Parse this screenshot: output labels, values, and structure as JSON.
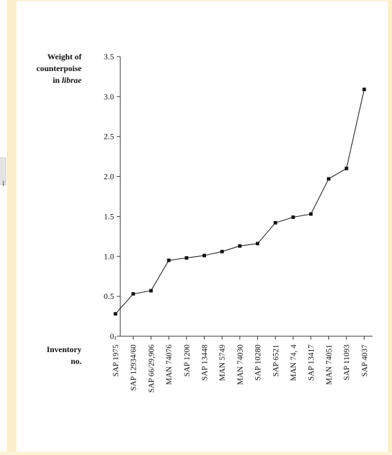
{
  "chart_data": {
    "type": "line",
    "ylabel_lines": [
      "Weight of",
      "counterpoise"
    ],
    "ylabel_prefix": "in ",
    "ylabel_italic": "librae",
    "xlabel_lines": [
      "Inventory",
      "no."
    ],
    "ylim": [
      0,
      3.5
    ],
    "yticks": [
      0,
      0.5,
      1.0,
      1.5,
      2.0,
      2.5,
      3.0,
      3.5
    ],
    "ytick_labels": [
      "0",
      "0.5",
      "1.0",
      "1.5",
      "2.0",
      "2.5",
      "3.0",
      "3.5"
    ],
    "categories": [
      "SAP 1975",
      "SAP 12934/60",
      "SAP 66/29,906",
      "MAN 74076",
      "SAP 1200",
      "SAP 13448",
      "MAN 5749",
      "MAN 74030",
      "SAP 10280",
      "SAP 6521",
      "MAN 74, 4",
      "SAP 13417",
      "MAN 74051",
      "SAP 11093",
      "SAP 4037"
    ],
    "values": [
      0.28,
      0.53,
      0.57,
      0.95,
      0.98,
      1.01,
      1.06,
      1.13,
      1.16,
      1.42,
      1.49,
      1.53,
      1.97,
      2.1,
      3.09
    ],
    "marker": "square",
    "grid": false,
    "legend": null,
    "colors": {
      "line": "#222222",
      "marker": "#111111",
      "axis": "#333333",
      "text": "#111111"
    }
  }
}
